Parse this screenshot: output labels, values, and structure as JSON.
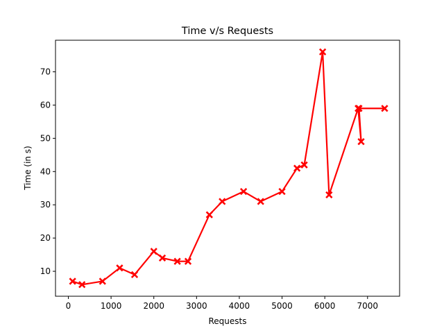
{
  "chart_data": {
    "type": "line",
    "title": "Time v/s Requests",
    "xlabel": "Requests",
    "ylabel": "Time (in s)",
    "xlim": [
      -300,
      7750
    ],
    "ylim": [
      2.5,
      79.5
    ],
    "xticks": [
      0,
      1000,
      2000,
      3000,
      4000,
      5000,
      6000,
      7000
    ],
    "yticks": [
      10,
      20,
      30,
      40,
      50,
      60,
      70
    ],
    "grid": false,
    "series": [
      {
        "color": "#ff0000",
        "marker": "X",
        "points": [
          {
            "x": 100,
            "y": 7
          },
          {
            "x": 320,
            "y": 6
          },
          {
            "x": 800,
            "y": 7
          },
          {
            "x": 1200,
            "y": 11
          },
          {
            "x": 1550,
            "y": 9
          },
          {
            "x": 2000,
            "y": 16
          },
          {
            "x": 2200,
            "y": 14
          },
          {
            "x": 2550,
            "y": 13
          },
          {
            "x": 2800,
            "y": 13
          },
          {
            "x": 3300,
            "y": 27
          },
          {
            "x": 3600,
            "y": 31
          },
          {
            "x": 4100,
            "y": 34
          },
          {
            "x": 4500,
            "y": 31
          },
          {
            "x": 5000,
            "y": 34
          },
          {
            "x": 5350,
            "y": 41
          },
          {
            "x": 5520,
            "y": 42
          },
          {
            "x": 5950,
            "y": 76
          },
          {
            "x": 6100,
            "y": 33
          },
          {
            "x": 6780,
            "y": 59
          },
          {
            "x": 6850,
            "y": 49
          },
          {
            "x": 6800,
            "y": 59
          },
          {
            "x": 7400,
            "y": 59
          }
        ]
      }
    ]
  }
}
